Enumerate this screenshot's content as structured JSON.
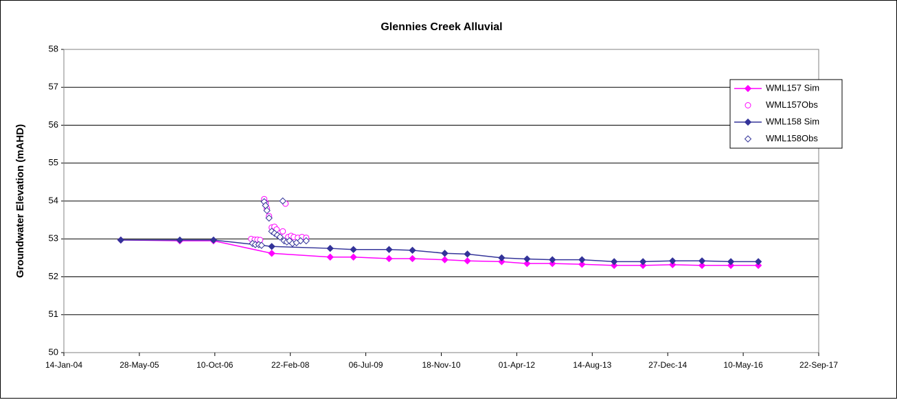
{
  "chart_data": {
    "type": "line",
    "title": "Glennies Creek Alluvial",
    "ylabel": "Groundwater Elevation (mAHD)",
    "xlim": [
      "2004-01-14",
      "2017-09-22"
    ],
    "xticks": [
      {
        "value": "2004-01-14",
        "label": "14-Jan-04"
      },
      {
        "value": "2005-05-28",
        "label": "28-May-05"
      },
      {
        "value": "2006-10-10",
        "label": "10-Oct-06"
      },
      {
        "value": "2008-02-22",
        "label": "22-Feb-08"
      },
      {
        "value": "2009-07-06",
        "label": "06-Jul-09"
      },
      {
        "value": "2010-11-18",
        "label": "18-Nov-10"
      },
      {
        "value": "2012-04-01",
        "label": "01-Apr-12"
      },
      {
        "value": "2013-08-14",
        "label": "14-Aug-13"
      },
      {
        "value": "2014-12-27",
        "label": "27-Dec-14"
      },
      {
        "value": "2016-05-10",
        "label": "10-May-16"
      },
      {
        "value": "2017-09-22",
        "label": "22-Sep-17"
      }
    ],
    "ylim": [
      50,
      58
    ],
    "yticks": [
      50,
      51,
      52,
      53,
      54,
      55,
      56,
      57,
      58
    ],
    "grid": true,
    "legend": "upper right",
    "series": [
      {
        "name": "WML157 Sim",
        "color": "#ff00ff",
        "marker": "diamond",
        "filled": true,
        "line": true,
        "x": [
          "2005-01-25",
          "2006-02-20",
          "2006-10-01",
          "2007-10-22",
          "2008-11-12",
          "2009-04-15",
          "2009-12-07",
          "2010-05-11",
          "2010-12-11",
          "2011-05-10",
          "2011-12-23",
          "2012-06-08",
          "2012-11-23",
          "2013-06-07",
          "2014-01-06",
          "2014-07-16",
          "2015-01-28",
          "2015-08-11",
          "2016-02-18",
          "2016-08-18"
        ],
        "values": [
          52.97,
          52.95,
          52.95,
          52.62,
          52.52,
          52.52,
          52.48,
          52.48,
          52.45,
          52.42,
          52.4,
          52.35,
          52.35,
          52.33,
          52.3,
          52.3,
          52.32,
          52.3,
          52.3,
          52.3
        ]
      },
      {
        "name": "WML157Obs",
        "color": "#ff00ff",
        "marker": "circle",
        "filled": false,
        "line": false,
        "x": [
          "2007-06-08",
          "2007-07-01",
          "2007-07-19",
          "2007-08-06",
          "2007-09-02",
          "2007-09-11",
          "2007-09-20",
          "2007-10-04",
          "2007-10-22",
          "2007-11-09",
          "2007-11-23",
          "2007-12-16",
          "2008-01-03",
          "2008-01-21",
          "2008-02-08",
          "2008-02-27",
          "2008-03-16",
          "2008-04-12",
          "2008-05-09",
          "2008-06-06"
        ],
        "values": [
          53.0,
          52.98,
          52.98,
          52.97,
          54.05,
          53.95,
          53.8,
          53.6,
          53.3,
          53.32,
          53.25,
          53.15,
          53.2,
          53.93,
          53.05,
          53.08,
          53.05,
          53.03,
          53.05,
          53.03
        ]
      },
      {
        "name": "WML158 Sim",
        "color": "#333399",
        "marker": "diamond",
        "filled": true,
        "line": true,
        "x": [
          "2005-01-25",
          "2006-02-20",
          "2006-10-01",
          "2007-10-22",
          "2008-11-12",
          "2009-04-15",
          "2009-12-07",
          "2010-05-11",
          "2010-12-11",
          "2011-05-10",
          "2011-12-23",
          "2012-06-08",
          "2012-11-23",
          "2013-06-07",
          "2014-01-06",
          "2014-07-16",
          "2015-01-28",
          "2015-08-11",
          "2016-02-18",
          "2016-08-18"
        ],
        "values": [
          52.97,
          52.97,
          52.97,
          52.8,
          52.75,
          52.72,
          52.72,
          52.7,
          52.62,
          52.6,
          52.5,
          52.47,
          52.45,
          52.45,
          52.4,
          52.4,
          52.42,
          52.42,
          52.4,
          52.4
        ]
      },
      {
        "name": "WML158Obs",
        "color": "#333399",
        "marker": "diamond",
        "filled": false,
        "line": false,
        "x": [
          "2007-06-17",
          "2007-07-05",
          "2007-07-28",
          "2007-08-15",
          "2007-09-02",
          "2007-09-11",
          "2007-09-20",
          "2007-10-04",
          "2007-10-22",
          "2007-11-09",
          "2007-11-28",
          "2007-12-16",
          "2008-01-03",
          "2008-01-12",
          "2008-01-30",
          "2008-02-17",
          "2008-03-07",
          "2008-04-03",
          "2008-04-30",
          "2008-06-06"
        ],
        "values": [
          52.88,
          52.85,
          52.85,
          52.83,
          53.98,
          53.88,
          53.75,
          53.55,
          53.2,
          53.15,
          53.1,
          53.05,
          54.0,
          52.95,
          52.92,
          52.95,
          52.88,
          52.9,
          52.95,
          52.95
        ]
      }
    ]
  }
}
